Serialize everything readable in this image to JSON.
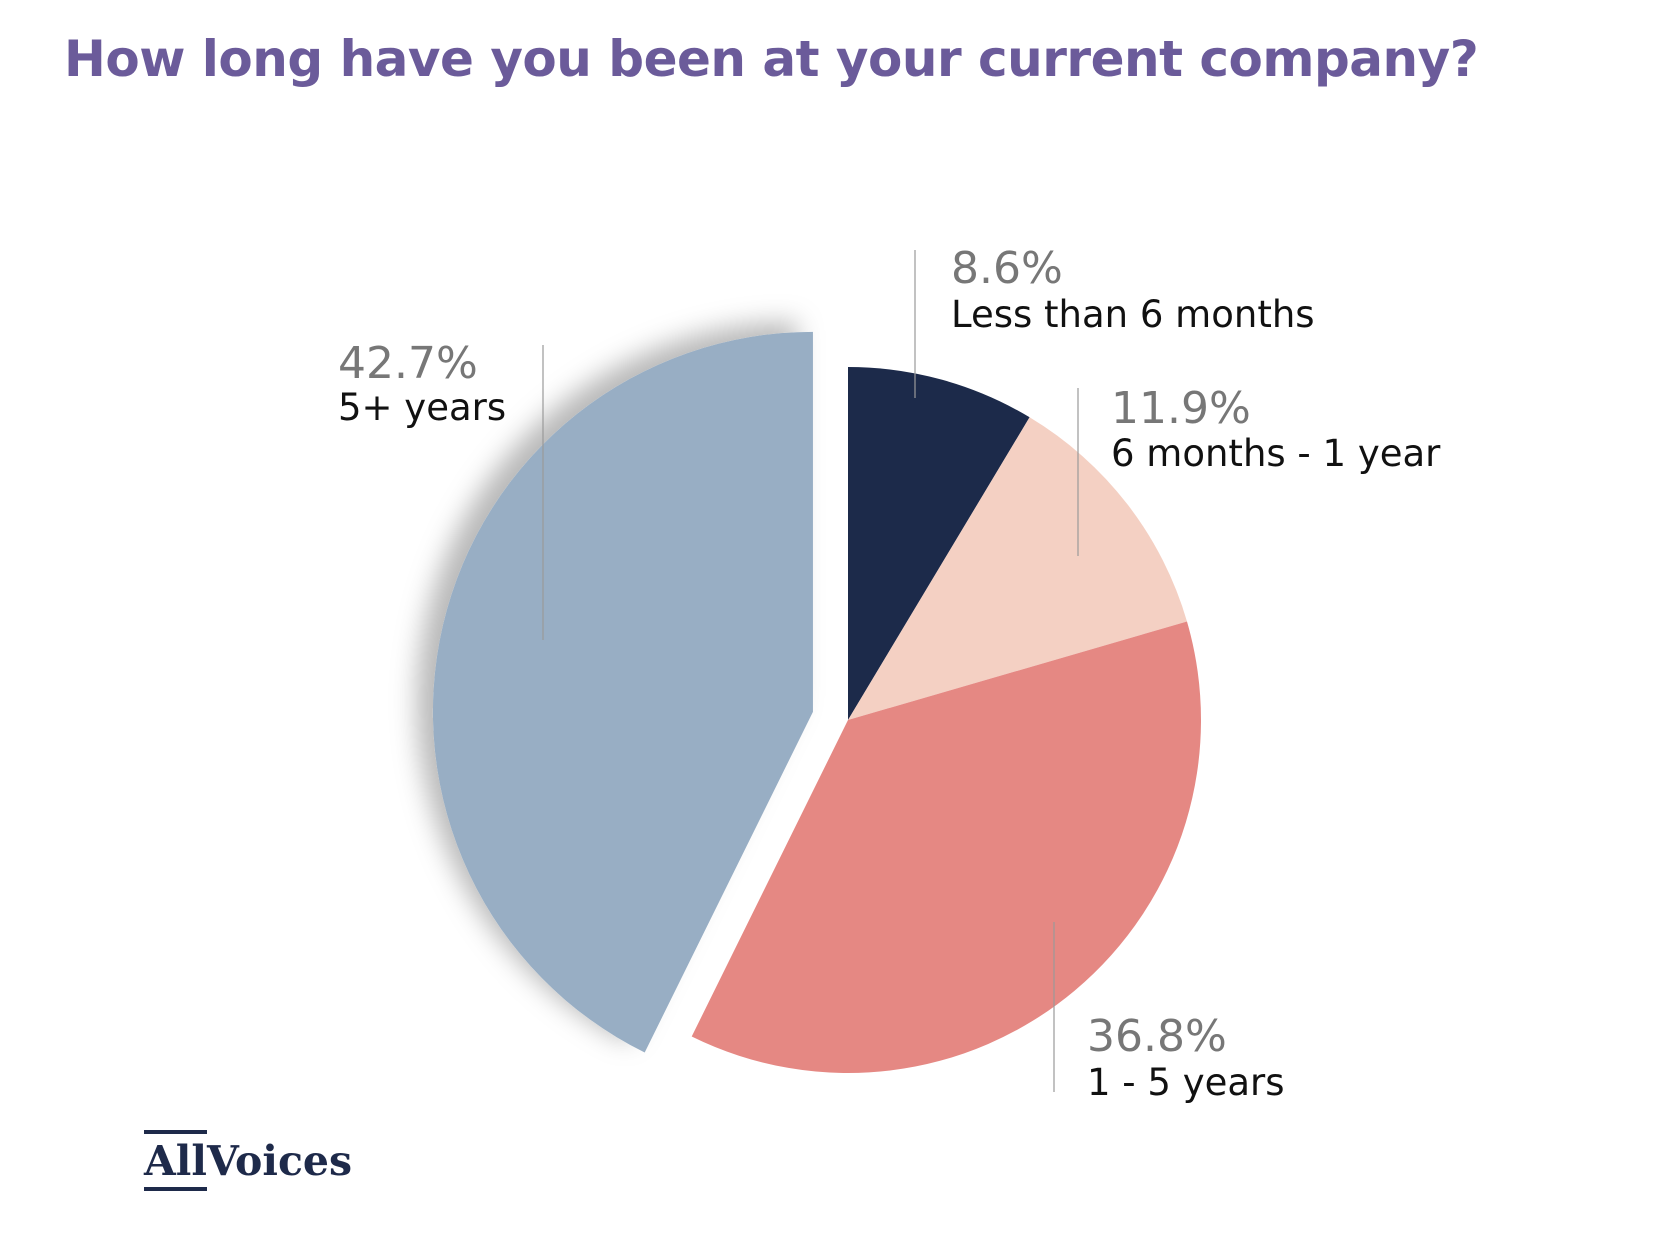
{
  "chart_data": {
    "type": "pie",
    "title": "How long have you been at your current company?",
    "start_angle_deg": 0,
    "direction": "clockwise",
    "slices": [
      {
        "label": "Less than 6 months",
        "value": 8.6,
        "display": "8.6%",
        "color": "#1c2a4a",
        "exploded": false
      },
      {
        "label": "6 months - 1 year",
        "value": 11.9,
        "display": "11.9%",
        "color": "#f4d0c3",
        "exploded": false
      },
      {
        "label": "1 - 5 years",
        "value": 36.8,
        "display": "36.8%",
        "color": "#e58883",
        "exploded": false
      },
      {
        "label": "5+ years",
        "value": 42.7,
        "display": "42.7%",
        "color": "#98aec4",
        "exploded": true
      }
    ]
  },
  "logo": {
    "part1": "All",
    "part2": "Voices"
  }
}
